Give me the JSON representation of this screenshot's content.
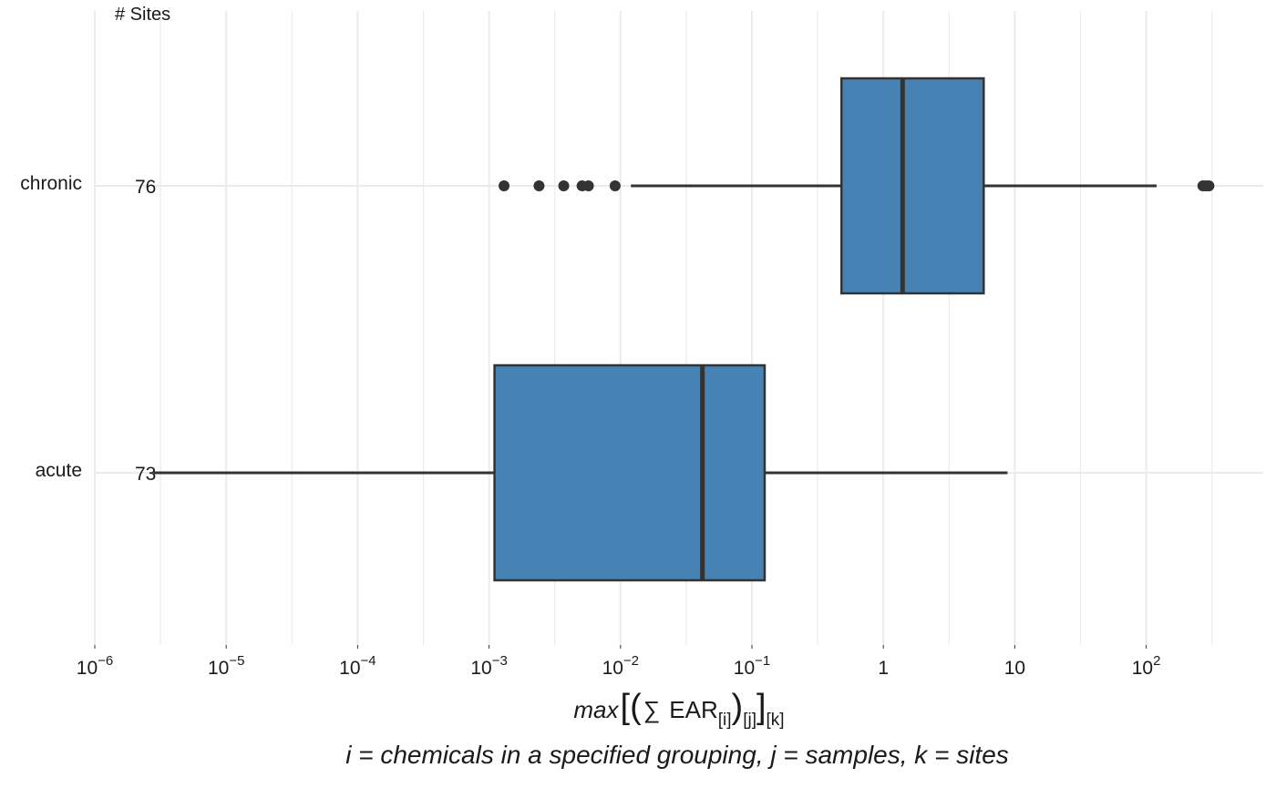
{
  "chart_data": {
    "type": "boxplot",
    "orientation": "horizontal",
    "x_scale": "log10",
    "xlim": [
      1e-06,
      1000
    ],
    "x_ticks": [
      {
        "value": 1e-06,
        "base": "10",
        "exp": "−6"
      },
      {
        "value": 1e-05,
        "base": "10",
        "exp": "−5"
      },
      {
        "value": 0.0001,
        "base": "10",
        "exp": "−4"
      },
      {
        "value": 0.001,
        "base": "10",
        "exp": "−3"
      },
      {
        "value": 0.01,
        "base": "10",
        "exp": "−2"
      },
      {
        "value": 0.1,
        "base": "10",
        "exp": "−1"
      },
      {
        "value": 1,
        "base": "1",
        "exp": ""
      },
      {
        "value": 10,
        "base": "10",
        "exp": ""
      },
      {
        "value": 100,
        "base": "10",
        "exp": "2"
      }
    ],
    "sites_header": "# Sites",
    "categories": [
      "chronic",
      "acute"
    ],
    "box_color": "#4682b4",
    "line_color": "#333333",
    "series": [
      {
        "category": "chronic",
        "n_sites": "76",
        "q1": 0.48,
        "median": 1.4,
        "q3": 5.8,
        "whisker_low": 0.012,
        "whisker_high": 120,
        "outliers": [
          0.0013,
          0.0024,
          0.0037,
          0.0051,
          0.0057,
          0.0091,
          270,
          285,
          300
        ]
      },
      {
        "category": "acute",
        "n_sites": "73",
        "q1": 0.0011,
        "median": 0.042,
        "q3": 0.125,
        "whisker_low": 2.8e-06,
        "whisker_high": 8.8,
        "outliers": []
      }
    ],
    "xlabel": {
      "max": "max",
      "open": "[(",
      "sum": "∑",
      "ear": "EAR",
      "sub_i": "[i]",
      "close_paren": ")",
      "sub_j": "[j]",
      "close_bracket": "]",
      "sub_k": "[k]"
    },
    "caption": "i = chemicals in a specified grouping, j = samples, k = sites"
  }
}
